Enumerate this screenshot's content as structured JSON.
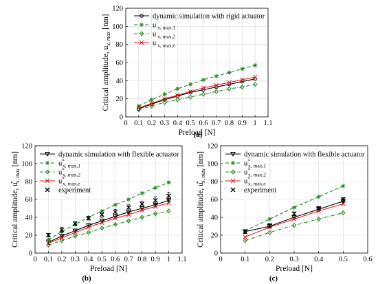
{
  "chart_data": [
    {
      "type": "line",
      "panel_label": "(a)",
      "xlabel": "Preload [N]",
      "ylabel": "Critical amplitude, u",
      "ylabel_sub": "x, max",
      "ylabel_unit": "[nm]",
      "xlim": [
        0,
        1.1
      ],
      "ylim": [
        0,
        120
      ],
      "xticks": [
        0,
        0.1,
        0.2,
        0.3,
        0.4,
        0.5,
        0.6,
        0.7,
        0.8,
        0.9,
        1,
        1.1
      ],
      "yticks": [
        0,
        20,
        40,
        60,
        80,
        100,
        120
      ],
      "xtick_labels": [
        "0",
        "0.1",
        "0.2",
        "0.3",
        "0.4",
        "0.5",
        "0.6",
        "0.7",
        "0.8",
        "0.9",
        "1",
        "1.1"
      ],
      "ytick_labels": [
        "0",
        "20",
        "40",
        "60",
        "80",
        "100",
        "120"
      ],
      "grid": true,
      "legend_position": "top-right",
      "x": [
        0.1,
        0.2,
        0.3,
        0.4,
        0.5,
        0.6,
        0.7,
        0.8,
        0.9,
        1.0
      ],
      "series": [
        {
          "name": "dynamic simulation with rigid actuator",
          "name_sub": "",
          "color": "#000000",
          "dash": "",
          "marker": "circle",
          "values": [
            9,
            14,
            19,
            23,
            27,
            30,
            33,
            36,
            39,
            42
          ]
        },
        {
          "name": "u",
          "name_sub": "x, max,1",
          "color": "#1e8c1e",
          "dash": "5,3",
          "marker": "asterisk",
          "values": [
            12,
            19,
            25,
            31,
            36,
            41,
            45,
            49,
            53,
            57
          ]
        },
        {
          "name": "u",
          "name_sub": "x, max,2",
          "color": "#1e8c1e",
          "dash": "5,2,1,2",
          "marker": "diamond",
          "values": [
            8,
            12,
            16,
            19,
            22,
            25,
            28,
            31,
            33,
            36
          ]
        },
        {
          "name": "u",
          "name_sub": "x, max,e",
          "color": "#e02020",
          "dash": "",
          "marker": "x",
          "values": [
            10,
            15,
            20,
            24,
            28,
            32,
            35,
            38,
            41,
            44
          ]
        }
      ]
    },
    {
      "type": "line",
      "panel_label": "(b)",
      "xlabel": "Preload [N]",
      "ylabel": "Critical amplitude, u",
      "ylabel_sup": "*",
      "ylabel_sub": "x, max",
      "ylabel_unit": "[nm]",
      "xlim": [
        0,
        1.1
      ],
      "ylim": [
        0,
        120
      ],
      "xticks": [
        0,
        0.1,
        0.2,
        0.3,
        0.4,
        0.5,
        0.6,
        0.7,
        0.8,
        0.9,
        1,
        1.1
      ],
      "yticks": [
        0,
        20,
        40,
        60,
        80,
        100,
        120
      ],
      "xtick_labels": [
        "0",
        "0.1",
        "0.2",
        "0.3",
        "0.4",
        "0.5",
        "0.6",
        "0.7",
        "0.8",
        "0.9",
        "1",
        "1.1"
      ],
      "ytick_labels": [
        "0",
        "20",
        "40",
        "60",
        "80",
        "100",
        "120"
      ],
      "grid": true,
      "legend_position": "top-left",
      "x": [
        0.1,
        0.2,
        0.3,
        0.4,
        0.5,
        0.6,
        0.7,
        0.8,
        0.9,
        1.0
      ],
      "series": [
        {
          "name": "dynamic simulation with flexible actuator",
          "name_sub": "",
          "name_sup": "",
          "color": "#000000",
          "dash": "",
          "marker": "triangle-down",
          "values": [
            12,
            19,
            25,
            31,
            36,
            41,
            46,
            50,
            54,
            59
          ],
          "error": [
            2,
            2,
            2,
            2,
            2,
            2,
            2,
            2,
            2,
            2
          ]
        },
        {
          "name": "u",
          "name_sub": "x, max,1",
          "name_sup": "*",
          "color": "#1e8c1e",
          "dash": "5,3",
          "marker": "asterisk",
          "values": [
            15,
            24,
            32,
            40,
            47,
            54,
            60,
            67,
            73,
            79
          ]
        },
        {
          "name": "u",
          "name_sub": "x, max,2",
          "name_sup": "*",
          "color": "#1e8c1e",
          "dash": "5,2,1,2",
          "marker": "diamond",
          "values": [
            9,
            14,
            19,
            23,
            28,
            32,
            36,
            40,
            44,
            47
          ]
        },
        {
          "name": "u",
          "name_sub": "x, max,e",
          "name_sup": "*",
          "color": "#e02020",
          "dash": "",
          "marker": "x",
          "values": [
            11,
            17,
            23,
            29,
            34,
            39,
            43,
            48,
            52,
            56
          ]
        },
        {
          "name": "experiment",
          "name_sub": "",
          "name_sup": "",
          "color": "#000000",
          "dash": "none",
          "marker": "x-black",
          "values": [
            20,
            26,
            33,
            39,
            43,
            46,
            51,
            55,
            59,
            64
          ],
          "error": [
            2,
            3,
            2,
            2,
            3,
            3,
            3,
            3,
            4,
            4
          ]
        }
      ]
    },
    {
      "type": "line",
      "panel_label": "(c)",
      "xlabel": "Preload [N]",
      "ylabel": "Critical amplitude, u",
      "ylabel_sup": "*",
      "ylabel_sub": "x, max",
      "ylabel_unit": "[nm]",
      "xlim": [
        0,
        0.6
      ],
      "ylim": [
        0,
        120
      ],
      "xticks": [
        0,
        0.1,
        0.2,
        0.3,
        0.4,
        0.5,
        0.6
      ],
      "yticks": [
        0,
        20,
        40,
        60,
        80,
        100,
        120
      ],
      "xtick_labels": [
        "0",
        "0.1",
        "0.2",
        "0.3",
        "0.4",
        "0.5",
        "0.6"
      ],
      "ytick_labels": [
        "0",
        "20",
        "40",
        "60",
        "80",
        "100",
        "120"
      ],
      "grid": true,
      "legend_position": "top-left",
      "x": [
        0.1,
        0.2,
        0.3,
        0.4,
        0.5
      ],
      "series": [
        {
          "name": "dynamic simulation with flexible actuator",
          "name_sub": "",
          "name_sup": "",
          "color": "#000000",
          "dash": "",
          "marker": "triangle-down",
          "values": [
            24,
            30,
            40,
            49,
            58
          ],
          "error": [
            2,
            2,
            2,
            2,
            2
          ]
        },
        {
          "name": "u",
          "name_sub": "x, max,1",
          "name_sup": "*",
          "color": "#1e8c1e",
          "dash": "5,3",
          "marker": "asterisk",
          "values": [
            25,
            38,
            51,
            63,
            75
          ]
        },
        {
          "name": "u",
          "name_sub": "x, max,2",
          "name_sup": "*",
          "color": "#1e8c1e",
          "dash": "5,2,1,2",
          "marker": "diamond",
          "values": [
            14,
            23,
            31,
            38,
            45
          ]
        },
        {
          "name": "u",
          "name_sub": "x, max,e",
          "name_sup": "*",
          "color": "#e02020",
          "dash": "",
          "marker": "x",
          "values": [
            18,
            29,
            38,
            47,
            55
          ]
        },
        {
          "name": "experiment",
          "name_sub": "",
          "name_sup": "",
          "color": "#000000",
          "dash": "none",
          "marker": "x-black",
          "values": [
            24,
            31,
            44,
            50,
            60
          ],
          "error": [
            2,
            2,
            2,
            2,
            2
          ]
        }
      ]
    }
  ]
}
